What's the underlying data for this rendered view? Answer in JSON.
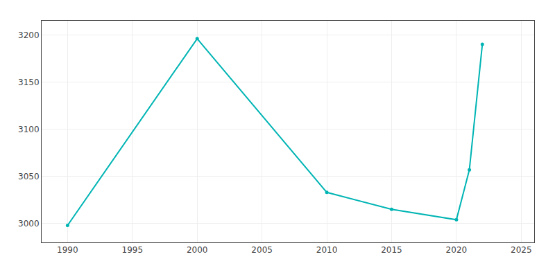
{
  "chart_data": {
    "type": "line",
    "x": [
      1990,
      2000,
      2010,
      2015,
      2020,
      2021,
      2022
    ],
    "values": [
      2998,
      3196,
      3033,
      3015,
      3004,
      3057,
      3190
    ],
    "color": "#00b4b4",
    "marker": "circle",
    "xlim": [
      1988,
      2026
    ],
    "ylim": [
      2980,
      3215
    ],
    "xticks": [
      1990,
      1995,
      2000,
      2005,
      2010,
      2015,
      2020,
      2025
    ],
    "yticks": [
      3000,
      3050,
      3100,
      3150,
      3200
    ],
    "grid": true
  }
}
